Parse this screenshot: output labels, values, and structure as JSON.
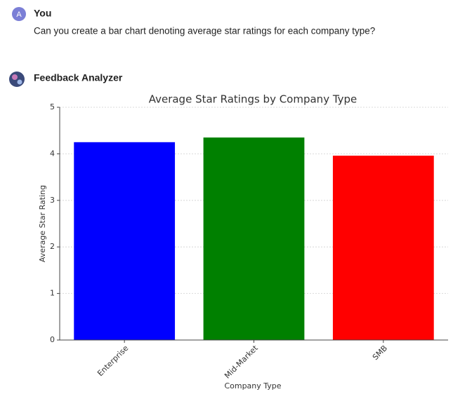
{
  "messages": [
    {
      "avatar": "A",
      "author": "You",
      "text": "Can you create a bar chart denoting average star ratings for each company type?"
    },
    {
      "author": "Feedback Analyzer"
    }
  ],
  "chart_data": {
    "type": "bar",
    "title": "Average Star Ratings by Company Type",
    "xlabel": "Company Type",
    "ylabel": "Average Star Rating",
    "categories": [
      "Enterprise",
      "Mid-Market",
      "SMB"
    ],
    "values": [
      4.25,
      4.35,
      3.96
    ],
    "colors": [
      "#0000ff",
      "#008000",
      "#ff0000"
    ],
    "ylim": [
      0,
      5
    ],
    "yticks": [
      0,
      1,
      2,
      3,
      4,
      5
    ],
    "grid": true
  }
}
